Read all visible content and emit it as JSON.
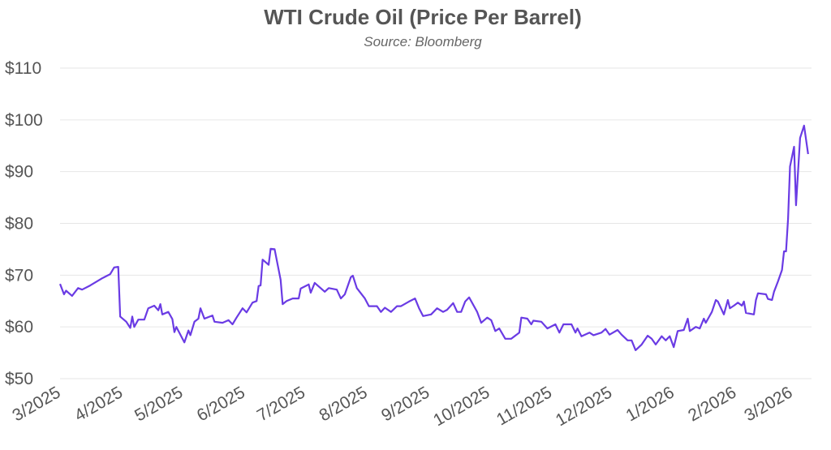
{
  "chart_data": {
    "type": "line",
    "title": "WTI Crude Oil (Price Per Barrel)",
    "subtitle": "Source: Bloomberg",
    "xlabel": "",
    "ylabel": "",
    "ylim": [
      50,
      110
    ],
    "yticks": [
      50,
      60,
      70,
      80,
      90,
      100,
      110
    ],
    "ytick_labels": [
      "$50",
      "$60",
      "$70",
      "$80",
      "$90",
      "$100",
      "$110"
    ],
    "xlim": [
      "2025-03-01",
      "2026-03-01"
    ],
    "xticks": [
      "2025-03-01",
      "2025-04-01",
      "2025-05-01",
      "2025-06-01",
      "2025-07-01",
      "2025-08-01",
      "2025-09-01",
      "2025-10-01",
      "2025-11-01",
      "2025-12-01",
      "2026-01-01",
      "2026-02-01",
      "2026-03-01"
    ],
    "xtick_labels": [
      "3/2025",
      "4/2025",
      "5/2025",
      "6/2025",
      "7/2025",
      "8/2025",
      "9/2025",
      "10/2025",
      "11/2025",
      "12/2025",
      "1/2026",
      "2/2026",
      "3/2026"
    ],
    "grid": "horizontal",
    "line_color": "#6a3be4",
    "series": [
      {
        "x": [
          "2025-03-01",
          "2025-03-03",
          "2025-03-04",
          "2025-03-07",
          "2025-03-10",
          "2025-03-12",
          "2025-03-16",
          "2025-03-22",
          "2025-03-26",
          "2025-03-28",
          "2025-03-30",
          "2025-03-31",
          "2025-04-03",
          "2025-04-05",
          "2025-04-06",
          "2025-04-07",
          "2025-04-09",
          "2025-04-12",
          "2025-04-14",
          "2025-04-17",
          "2025-04-19",
          "2025-04-20",
          "2025-04-21",
          "2025-04-24",
          "2025-04-26",
          "2025-04-27",
          "2025-04-28",
          "2025-05-02",
          "2025-05-04",
          "2025-05-05",
          "2025-05-07",
          "2025-05-09",
          "2025-05-10",
          "2025-05-12",
          "2025-05-16",
          "2025-05-17",
          "2025-05-21",
          "2025-05-24",
          "2025-05-26",
          "2025-05-28",
          "2025-05-31",
          "2025-06-02",
          "2025-06-05",
          "2025-06-07",
          "2025-06-08",
          "2025-06-09",
          "2025-06-10",
          "2025-06-13",
          "2025-06-14",
          "2025-06-16",
          "2025-06-19",
          "2025-06-20",
          "2025-06-22",
          "2025-06-25",
          "2025-06-28",
          "2025-06-29",
          "2025-07-03",
          "2025-07-04",
          "2025-07-06",
          "2025-07-11",
          "2025-07-13",
          "2025-07-17",
          "2025-07-19",
          "2025-07-21",
          "2025-07-24",
          "2025-07-25",
          "2025-07-27",
          "2025-07-31",
          "2025-08-02",
          "2025-08-06",
          "2025-08-08",
          "2025-08-10",
          "2025-08-13",
          "2025-08-16",
          "2025-08-18",
          "2025-08-22",
          "2025-08-25",
          "2025-08-27",
          "2025-08-29",
          "2025-09-02",
          "2025-09-05",
          "2025-09-08",
          "2025-09-10",
          "2025-09-13",
          "2025-09-15",
          "2025-09-17",
          "2025-09-19",
          "2025-09-21",
          "2025-09-25",
          "2025-09-27",
          "2025-09-30",
          "2025-10-02",
          "2025-10-04",
          "2025-10-06",
          "2025-10-09",
          "2025-10-12",
          "2025-10-16",
          "2025-10-17",
          "2025-10-20",
          "2025-10-22",
          "2025-10-23",
          "2025-10-27",
          "2025-10-30",
          "2025-11-03",
          "2025-11-05",
          "2025-11-07",
          "2025-11-11",
          "2025-11-13",
          "2025-11-14",
          "2025-11-16",
          "2025-11-20",
          "2025-11-22",
          "2025-11-26",
          "2025-11-28",
          "2025-11-30",
          "2025-12-04",
          "2025-12-06",
          "2025-12-09",
          "2025-12-11",
          "2025-12-13",
          "2025-12-16",
          "2025-12-19",
          "2025-12-21",
          "2025-12-23",
          "2025-12-26",
          "2025-12-28",
          "2025-12-30",
          "2026-01-01",
          "2026-01-03",
          "2026-01-06",
          "2026-01-08",
          "2026-01-09",
          "2026-01-12",
          "2026-01-14",
          "2026-01-16",
          "2026-01-17",
          "2026-01-20",
          "2026-01-22",
          "2026-01-23",
          "2026-01-26",
          "2026-01-28",
          "2026-01-29",
          "2026-01-31",
          "2026-02-02",
          "2026-02-04",
          "2026-02-05",
          "2026-02-06",
          "2026-02-10",
          "2026-02-11",
          "2026-02-12",
          "2026-02-16",
          "2026-02-17",
          "2026-02-19",
          "2026-02-20",
          "2026-02-22",
          "2026-02-24",
          "2026-02-25",
          "2026-02-26",
          "2026-02-27",
          "2026-02-28",
          "2026-03-02",
          "2026-03-03",
          "2026-03-05",
          "2026-03-07",
          "2026-03-09"
        ],
        "y": [
          68.3,
          66.3,
          67.0,
          66.0,
          67.5,
          67.2,
          68.0,
          69.4,
          70.2,
          71.5,
          71.6,
          62.0,
          61.0,
          59.8,
          62.0,
          60.0,
          61.4,
          61.4,
          63.6,
          64.1,
          63.2,
          64.4,
          62.4,
          62.9,
          61.5,
          59.0,
          60.0,
          57.0,
          59.3,
          58.4,
          61.0,
          61.6,
          63.6,
          61.6,
          62.2,
          61.0,
          60.8,
          61.3,
          60.5,
          61.8,
          63.6,
          62.8,
          64.7,
          65.0,
          67.9,
          68.0,
          73.0,
          72.0,
          75.1,
          75.0,
          69.1,
          64.4,
          65.0,
          65.5,
          65.5,
          67.4,
          68.2,
          66.6,
          68.5,
          66.8,
          67.5,
          67.2,
          65.5,
          66.3,
          69.6,
          69.9,
          67.5,
          65.5,
          64.0,
          64.0,
          62.9,
          63.7,
          62.9,
          64.0,
          64.0,
          64.9,
          65.5,
          63.6,
          62.1,
          62.4,
          63.6,
          62.9,
          63.3,
          64.6,
          62.9,
          62.9,
          64.9,
          65.7,
          62.9,
          60.8,
          61.8,
          61.3,
          59.2,
          59.7,
          57.7,
          57.7,
          58.9,
          61.8,
          61.6,
          60.5,
          61.2,
          61.0,
          59.7,
          60.5,
          58.9,
          60.5,
          60.5,
          58.9,
          59.7,
          58.2,
          58.9,
          58.4,
          58.9,
          59.6,
          58.5,
          59.4,
          58.5,
          57.4,
          57.4,
          55.5,
          56.6,
          58.3,
          57.7,
          56.6,
          58.2,
          57.4,
          58.2,
          56.1,
          59.2,
          59.4,
          61.6,
          59.2,
          60.0,
          59.7,
          61.6,
          60.8,
          62.9,
          65.2,
          64.9,
          62.4,
          65.2,
          63.6,
          64.1,
          64.7,
          64.1,
          64.9,
          62.7,
          62.4,
          65.2,
          66.5,
          66.3,
          65.4,
          65.2,
          66.8,
          68.8,
          71.0,
          74.6,
          74.6,
          80.9,
          91.0,
          94.8,
          83.5,
          96.5,
          98.9,
          93.4
        ]
      }
    ]
  }
}
